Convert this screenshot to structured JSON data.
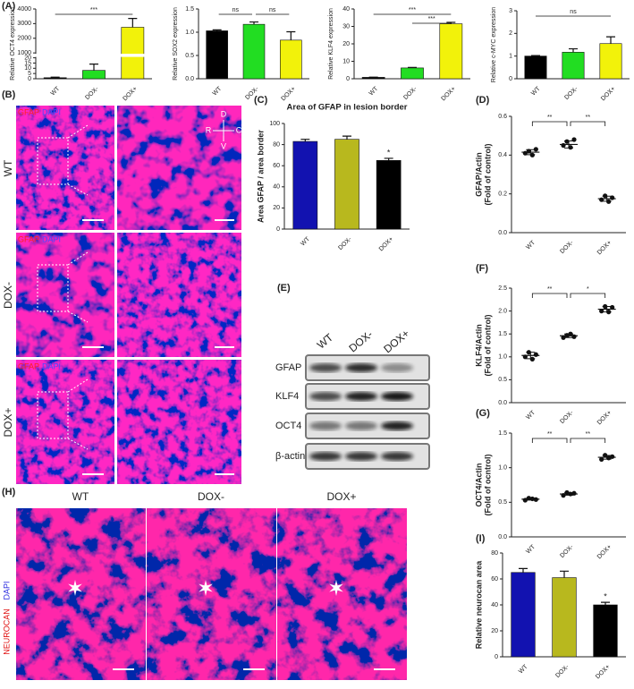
{
  "panel_labels": [
    "(A)",
    "(B)",
    "(C)",
    "(D)",
    "(E)",
    "(F)",
    "(G)",
    "(H)",
    "(I)"
  ],
  "panel_b": {
    "stain": [
      "GFAP",
      "DAPI"
    ],
    "rows": [
      "WT",
      "DOX-",
      "DOX+"
    ],
    "orientation": [
      "D",
      "R",
      "C",
      "V"
    ]
  },
  "panel_e": {
    "lanes": [
      "WT",
      "DOX-",
      "DOX+"
    ],
    "bands": [
      "GFAP",
      "KLF4",
      "OCT4",
      "β-actin"
    ]
  },
  "panel_h": {
    "columns": [
      "WT",
      "DOX-",
      "DOX+"
    ],
    "stain": [
      "NEUROCAN",
      "DAPI"
    ]
  },
  "chart_data": [
    {
      "type": "bar",
      "y_label": "Relative OCT4 expression",
      "categories": [
        "WT",
        "DOX-",
        "DOX+"
      ],
      "values": [
        1,
        8,
        2750
      ],
      "errors": [
        0.5,
        6,
        600
      ],
      "colors": [
        "#000000",
        "#22dd22",
        "#f2f20a"
      ],
      "segments": [
        {
          "ylim": [
            0,
            20
          ],
          "yticks": [
            0,
            5,
            10,
            15,
            20
          ]
        },
        {
          "ylim": [
            1000,
            4000
          ],
          "yticks": [
            1000,
            2000,
            3000,
            4000
          ]
        }
      ],
      "annotations": [
        {
          "pair": [
            0,
            2
          ],
          "text": "***"
        }
      ]
    },
    {
      "type": "bar",
      "y_label": "Relative SOX2 expression",
      "categories": [
        "WT",
        "DOX-",
        "DOX+"
      ],
      "values": [
        1.03,
        1.17,
        0.83
      ],
      "errors": [
        0.02,
        0.05,
        0.18
      ],
      "colors": [
        "#000000",
        "#22dd22",
        "#f2f20a"
      ],
      "ylim": [
        0,
        1.5
      ],
      "yticks": [
        {
          "value": 0,
          "label": "0.0"
        },
        {
          "value": 0.5,
          "label": "0.5"
        },
        {
          "value": 1,
          "label": "1.0"
        },
        {
          "value": 1.5,
          "label": "1.5"
        }
      ],
      "annotations": [
        {
          "pair": [
            0,
            1
          ],
          "text": "ns"
        },
        {
          "pair": [
            1,
            2
          ],
          "text": "ns"
        }
      ]
    },
    {
      "type": "bar",
      "y_label": "Relative KLF4 expression",
      "categories": [
        "WT",
        "DOX-",
        "DOX+"
      ],
      "values": [
        0.8,
        6.2,
        31.5
      ],
      "errors": [
        0.1,
        0.3,
        0.8
      ],
      "colors": [
        "#000000",
        "#22dd22",
        "#f2f20a"
      ],
      "ylim": [
        0,
        40
      ],
      "yticks": [
        0,
        10,
        20,
        30,
        40
      ],
      "annotations": [
        {
          "pair": [
            0,
            2
          ],
          "text": "***"
        },
        {
          "pair": [
            1,
            2
          ],
          "text": "***"
        }
      ]
    },
    {
      "type": "bar",
      "y_label": "Relative c-MYC expression",
      "categories": [
        "WT",
        "DOX-",
        "DOX+"
      ],
      "values": [
        1.0,
        1.17,
        1.55
      ],
      "errors": [
        0.02,
        0.15,
        0.3
      ],
      "colors": [
        "#000000",
        "#22dd22",
        "#f2f20a"
      ],
      "ylim": [
        0,
        3
      ],
      "yticks": [
        0,
        1,
        2,
        3
      ],
      "annotations": [
        {
          "pair": [
            0,
            2
          ],
          "text": "ns"
        }
      ]
    },
    {
      "type": "bar",
      "title": "Area of GFAP in lesion border",
      "y_label": "Area GFAP / area border",
      "categories": [
        "WT",
        "DOX-",
        "DOX+"
      ],
      "values": [
        83,
        85,
        65
      ],
      "errors": [
        2,
        3,
        2
      ],
      "colors": [
        "#1212b0",
        "#b8b81e",
        "#000000"
      ],
      "ylim": [
        0,
        100
      ],
      "yticks": [
        0,
        20,
        40,
        60,
        80,
        100
      ],
      "value_marks": [
        null,
        null,
        "*"
      ]
    },
    {
      "type": "strip",
      "y_label": [
        "GFAP/Actin",
        "(Fold of control)"
      ],
      "categories": [
        "WT",
        "DOX-",
        "DOX+"
      ],
      "points": [
        [
          0.41,
          0.42,
          0.4,
          0.43
        ],
        [
          0.45,
          0.47,
          0.44,
          0.48
        ],
        [
          0.17,
          0.19,
          0.16,
          0.18
        ]
      ],
      "values": [
        0.415,
        0.455,
        0.175
      ],
      "errors": [
        0.013,
        0.018,
        0.013
      ],
      "ylim": [
        0,
        0.6
      ],
      "yticks": [
        {
          "value": 0,
          "label": "0.0"
        },
        {
          "value": 0.2,
          "label": "0.2"
        },
        {
          "value": 0.4,
          "label": "0.4"
        },
        {
          "value": 0.6,
          "label": "0.6"
        }
      ],
      "annotations": [
        {
          "pair": [
            0,
            1
          ],
          "text": "**"
        },
        {
          "pair": [
            1,
            2
          ],
          "text": "**"
        }
      ]
    },
    {
      "type": "strip",
      "y_label": [
        "KLF4/Actin",
        "(Fold of control)"
      ],
      "categories": [
        "WT",
        "DOX-",
        "DOX+"
      ],
      "points": [
        [
          1.0,
          1.1,
          0.95,
          1.05
        ],
        [
          1.42,
          1.47,
          1.5,
          1.44
        ],
        [
          2.0,
          2.1,
          1.98,
          2.08
        ]
      ],
      "values": [
        1.03,
        1.46,
        2.04
      ],
      "errors": [
        0.07,
        0.04,
        0.06
      ],
      "ylim": [
        0,
        2.5
      ],
      "yticks": [
        {
          "value": 0,
          "label": "0.0"
        },
        {
          "value": 0.5,
          "label": "0.5"
        },
        {
          "value": 1,
          "label": "1.0"
        },
        {
          "value": 1.5,
          "label": "1.5"
        },
        {
          "value": 2,
          "label": "2.0"
        },
        {
          "value": 2.5,
          "label": "2.5"
        }
      ],
      "annotations": [
        {
          "pair": [
            0,
            1
          ],
          "text": "**"
        },
        {
          "pair": [
            1,
            2
          ],
          "text": "*"
        }
      ]
    },
    {
      "type": "strip",
      "y_label": [
        "OCT4/Actin",
        "(Fold of ocntrol)"
      ],
      "categories": [
        "WT",
        "DOX-",
        "DOX+"
      ],
      "points": [
        [
          0.53,
          0.56,
          0.55,
          0.54
        ],
        [
          0.6,
          0.64,
          0.62,
          0.63
        ],
        [
          1.12,
          1.18,
          1.14,
          1.16
        ]
      ],
      "values": [
        0.545,
        0.62,
        1.15
      ],
      "errors": [
        0.013,
        0.017,
        0.026
      ],
      "ylim": [
        0,
        1.5
      ],
      "yticks": [
        {
          "value": 0,
          "label": "0.0"
        },
        {
          "value": 0.5,
          "label": "0.5"
        },
        {
          "value": 1,
          "label": "1.0"
        },
        {
          "value": 1.5,
          "label": "1.5"
        }
      ],
      "annotations": [
        {
          "pair": [
            0,
            1
          ],
          "text": "**"
        },
        {
          "pair": [
            1,
            2
          ],
          "text": "**"
        }
      ]
    },
    {
      "type": "bar",
      "y_label": "Relative neurocan area",
      "categories": [
        "WT",
        "DOX-",
        "DOX+"
      ],
      "values": [
        65,
        61,
        40
      ],
      "errors": [
        3,
        5,
        2
      ],
      "colors": [
        "#1212b0",
        "#b8b81e",
        "#000000"
      ],
      "ylim": [
        0,
        80
      ],
      "yticks": [
        0,
        20,
        40,
        60,
        80
      ],
      "value_marks": [
        null,
        null,
        "*"
      ]
    }
  ]
}
